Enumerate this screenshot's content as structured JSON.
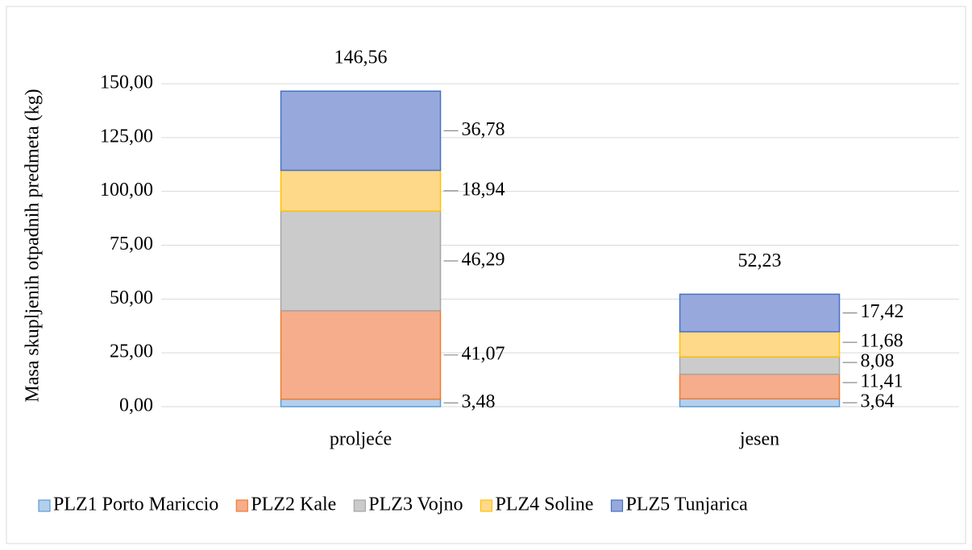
{
  "chart_data": {
    "type": "stacked_bar",
    "y_label": "Masa skupljenih otpadnih predmeta (kg)",
    "categories": [
      "proljeće",
      "jesen"
    ],
    "series": [
      {
        "name": "PLZ1 Porto Mariccio",
        "color": "#5b9bd5",
        "fill": "#b4cfec",
        "values": [
          3.48,
          3.64
        ],
        "value_labels": [
          "3,48",
          "3,64"
        ]
      },
      {
        "name": "PLZ2 Kale",
        "color": "#ed7d31",
        "fill": "#f5ad8c",
        "values": [
          41.07,
          11.41
        ],
        "value_labels": [
          "41,07",
          "11,41"
        ]
      },
      {
        "name": "PLZ3 Vojno",
        "color": "#a5a5a5",
        "fill": "#cbcbcb",
        "values": [
          46.29,
          8.08
        ],
        "value_labels": [
          "46,29",
          "8,08"
        ]
      },
      {
        "name": "PLZ4 Soline",
        "color": "#ffc000",
        "fill": "#ffd98a",
        "values": [
          18.94,
          11.68
        ],
        "value_labels": [
          "18,94",
          "11,68"
        ]
      },
      {
        "name": "PLZ5 Tunjarica",
        "color": "#4472c4",
        "fill": "#97a8dc",
        "values": [
          36.78,
          17.42
        ],
        "value_labels": [
          "36,78",
          "17,42"
        ]
      }
    ],
    "totals": [
      146.56,
      52.23
    ],
    "total_labels": [
      "146,56",
      "52,23"
    ],
    "ylim": [
      0,
      150
    ],
    "yticks": [
      {
        "value": 0,
        "label": "0,00"
      },
      {
        "value": 25,
        "label": "25,00"
      },
      {
        "value": 50,
        "label": "50,00"
      },
      {
        "value": 75,
        "label": "75,00"
      },
      {
        "value": 100,
        "label": "100,00"
      },
      {
        "value": 125,
        "label": "125,00"
      },
      {
        "value": 150,
        "label": "150,00"
      }
    ],
    "grid": true,
    "legend": "bottom"
  }
}
